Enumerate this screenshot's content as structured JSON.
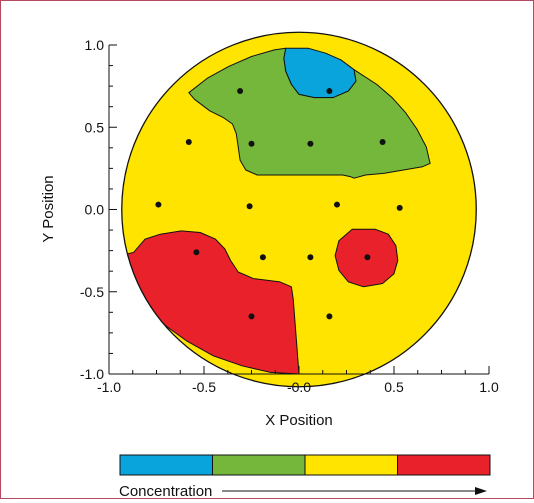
{
  "chart_data": {
    "type": "heatmap",
    "title": "",
    "xlabel": "X Position",
    "ylabel": "Y Position",
    "xlim": [
      -1.0,
      1.0
    ],
    "ylim": [
      -1.0,
      1.0
    ],
    "xticks": [
      "-1.0",
      "-0.5",
      "-0.0",
      "0.5",
      "1.0"
    ],
    "yticks": [
      "1.0",
      "0.5",
      "0.0",
      "-0.5",
      "-1.0"
    ],
    "grid": false,
    "region": "circular wafer map, radius 1.0",
    "sample_points": [
      {
        "x": -0.31,
        "y": 0.72
      },
      {
        "x": 0.16,
        "y": 0.72
      },
      {
        "x": -0.58,
        "y": 0.41
      },
      {
        "x": -0.25,
        "y": 0.4
      },
      {
        "x": 0.06,
        "y": 0.4
      },
      {
        "x": 0.44,
        "y": 0.41
      },
      {
        "x": -0.74,
        "y": 0.03
      },
      {
        "x": -0.26,
        "y": 0.02
      },
      {
        "x": 0.2,
        "y": 0.03
      },
      {
        "x": 0.53,
        "y": 0.01
      },
      {
        "x": -0.54,
        "y": -0.26
      },
      {
        "x": -0.19,
        "y": -0.29
      },
      {
        "x": 0.06,
        "y": -0.29
      },
      {
        "x": 0.36,
        "y": -0.29
      },
      {
        "x": -0.25,
        "y": -0.65
      },
      {
        "x": 0.16,
        "y": -0.65
      }
    ],
    "concentration_levels": [
      {
        "level": 1,
        "color": "#0aa4dc"
      },
      {
        "level": 2,
        "color": "#74b73b"
      },
      {
        "level": 3,
        "color": "#ffe400"
      },
      {
        "level": 4,
        "color": "#e8212b"
      }
    ],
    "zones": [
      {
        "level": 1,
        "boundary": [
          [
            -0.07,
            0.98
          ],
          [
            0.05,
            0.98
          ],
          [
            0.14,
            0.95
          ],
          [
            0.22,
            0.91
          ],
          [
            0.29,
            0.85
          ],
          [
            0.3,
            0.78
          ],
          [
            0.26,
            0.72
          ],
          [
            0.18,
            0.68
          ],
          [
            0.08,
            0.68
          ],
          [
            0.0,
            0.7
          ],
          [
            -0.04,
            0.76
          ],
          [
            -0.07,
            0.84
          ],
          [
            -0.08,
            0.92
          ]
        ]
      },
      {
        "level": 2,
        "boundary": [
          [
            -0.07,
            0.98
          ],
          [
            -0.08,
            0.92
          ],
          [
            -0.07,
            0.84
          ],
          [
            -0.04,
            0.76
          ],
          [
            0.0,
            0.7
          ],
          [
            0.08,
            0.68
          ],
          [
            0.18,
            0.68
          ],
          [
            0.26,
            0.72
          ],
          [
            0.3,
            0.78
          ],
          [
            0.29,
            0.85
          ],
          [
            0.41,
            0.76
          ],
          [
            0.49,
            0.68
          ],
          [
            0.56,
            0.59
          ],
          [
            0.62,
            0.49
          ],
          [
            0.67,
            0.38
          ],
          [
            0.69,
            0.28
          ],
          [
            0.65,
            0.26
          ],
          [
            0.55,
            0.24
          ],
          [
            0.45,
            0.22
          ],
          [
            0.35,
            0.21
          ],
          [
            0.29,
            0.19
          ],
          [
            0.27,
            0.2
          ],
          [
            0.23,
            0.21
          ],
          [
            -0.1,
            0.21
          ],
          [
            -0.22,
            0.21
          ],
          [
            -0.28,
            0.24
          ],
          [
            -0.31,
            0.3
          ],
          [
            -0.32,
            0.38
          ],
          [
            -0.33,
            0.46
          ],
          [
            -0.35,
            0.52
          ],
          [
            -0.4,
            0.56
          ],
          [
            -0.47,
            0.6
          ],
          [
            -0.55,
            0.67
          ],
          [
            -0.58,
            0.71
          ],
          [
            -0.48,
            0.8
          ],
          [
            -0.37,
            0.87
          ],
          [
            -0.25,
            0.93
          ],
          [
            -0.13,
            0.97
          ]
        ]
      },
      {
        "level": 4,
        "boundary": [
          [
            -0.87,
            -0.26
          ],
          [
            -0.81,
            -0.18
          ],
          [
            -0.73,
            -0.15
          ],
          [
            -0.62,
            -0.13
          ],
          [
            -0.52,
            -0.14
          ],
          [
            -0.44,
            -0.18
          ],
          [
            -0.39,
            -0.24
          ],
          [
            -0.36,
            -0.31
          ],
          [
            -0.32,
            -0.38
          ],
          [
            -0.24,
            -0.42
          ],
          [
            -0.1,
            -0.44
          ],
          [
            -0.04,
            -0.47
          ],
          [
            -0.03,
            -0.55
          ],
          [
            -0.02,
            -0.7
          ],
          [
            -0.01,
            -0.85
          ],
          [
            0.0,
            -1.0
          ],
          [
            -0.15,
            -0.99
          ],
          [
            -0.3,
            -0.95
          ],
          [
            -0.45,
            -0.89
          ],
          [
            -0.59,
            -0.8
          ],
          [
            -0.71,
            -0.7
          ],
          [
            -0.81,
            -0.58
          ],
          [
            -0.9,
            -0.44
          ],
          [
            -0.97,
            -0.29
          ]
        ]
      },
      {
        "level": 4,
        "boundary": [
          [
            0.28,
            -0.12
          ],
          [
            0.4,
            -0.12
          ],
          [
            0.47,
            -0.15
          ],
          [
            0.51,
            -0.22
          ],
          [
            0.52,
            -0.31
          ],
          [
            0.5,
            -0.39
          ],
          [
            0.44,
            -0.45
          ],
          [
            0.34,
            -0.47
          ],
          [
            0.26,
            -0.44
          ],
          [
            0.21,
            -0.37
          ],
          [
            0.19,
            -0.28
          ],
          [
            0.21,
            -0.19
          ]
        ]
      }
    ],
    "colorbar": {
      "label": "Concentration",
      "direction": "increasing"
    }
  }
}
